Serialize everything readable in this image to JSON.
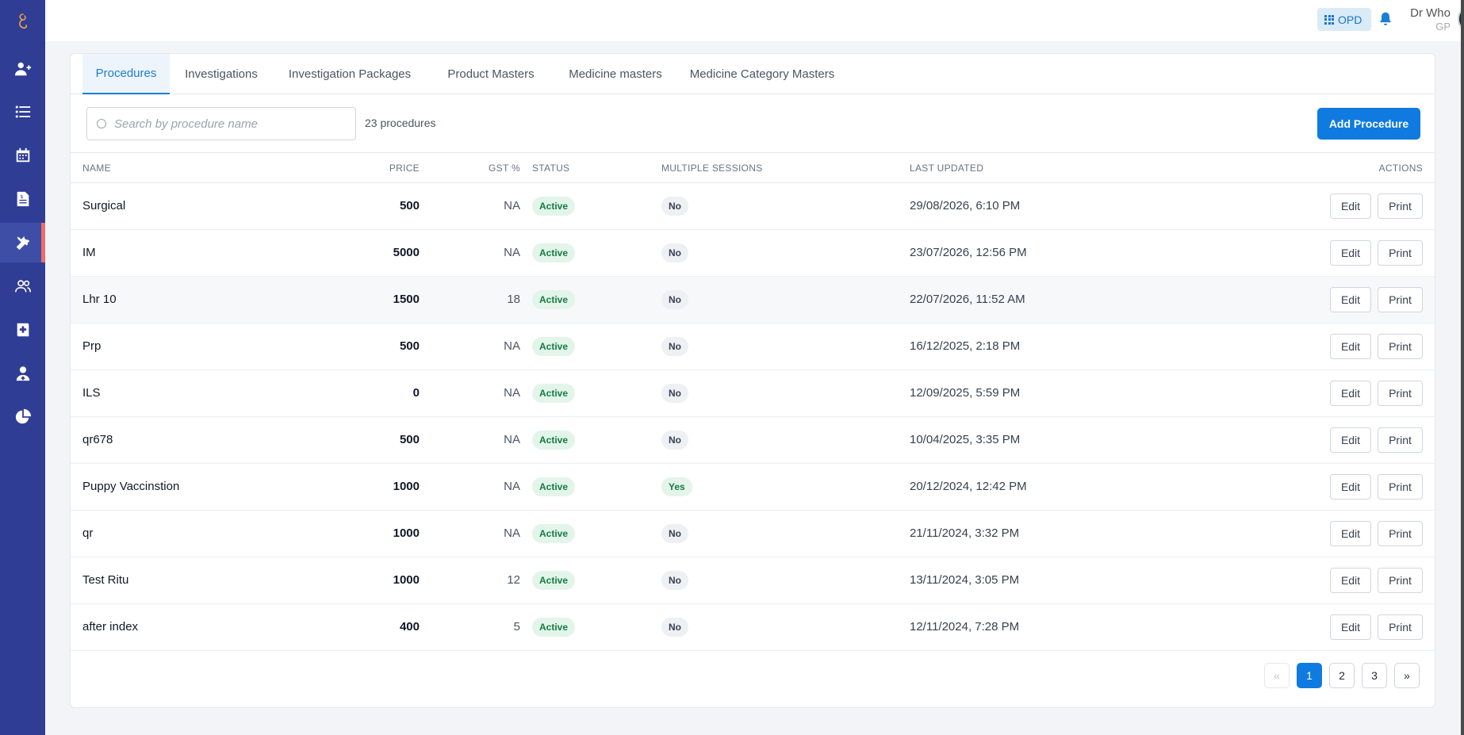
{
  "header": {
    "opd_label": "OPD",
    "user_name": "Dr Who",
    "user_role": "GP"
  },
  "sidebar": {
    "active_accent": "#f06b6b",
    "background": "#2f3d94",
    "items": [
      {
        "icon": "user-plus-icon"
      },
      {
        "icon": "list-icon"
      },
      {
        "icon": "calendar-icon"
      },
      {
        "icon": "invoice-icon"
      },
      {
        "icon": "tools-icon",
        "active": true
      },
      {
        "icon": "users-icon"
      },
      {
        "icon": "medical-book-icon"
      },
      {
        "icon": "doctor-icon"
      },
      {
        "icon": "pie-chart-icon"
      }
    ]
  },
  "tabs": [
    "Procedures",
    "Investigations",
    "Investigation Packages",
    "Product Masters",
    "Medicine masters",
    "Medicine Category Masters"
  ],
  "active_tab": "Procedures",
  "toolbar": {
    "search_placeholder": "Search by procedure name",
    "count_text": "23 procedures",
    "add_label": "Add Procedure"
  },
  "table": {
    "headers": {
      "name": "NAME",
      "price": "PRICE",
      "gst": "GST %",
      "status": "STATUS",
      "sessions": "MULTIPLE SESSIONS",
      "updated": "LAST UPDATED",
      "actions": "ACTIONS"
    },
    "rows": [
      {
        "name": "Surgical",
        "price": "500",
        "gst": "NA",
        "status": "Active",
        "sessions": "No",
        "updated": "29/08/2026, 6:10 PM",
        "edit": "Edit",
        "print": "Print"
      },
      {
        "name": "IM",
        "price": "5000",
        "gst": "NA",
        "status": "Active",
        "sessions": "No",
        "updated": "23/07/2026, 12:56 PM",
        "edit": "Edit",
        "print": "Print"
      },
      {
        "name": "Lhr 10",
        "price": "1500",
        "gst": "18",
        "status": "Active",
        "sessions": "No",
        "updated": "22/07/2026, 11:52 AM",
        "edit": "Edit",
        "print": "Print"
      },
      {
        "name": "Prp",
        "price": "500",
        "gst": "NA",
        "status": "Active",
        "sessions": "No",
        "updated": "16/12/2025, 2:18 PM",
        "edit": "Edit",
        "print": "Print"
      },
      {
        "name": "ILS",
        "price": "0",
        "gst": "NA",
        "status": "Active",
        "sessions": "No",
        "updated": "12/09/2025, 5:59 PM",
        "edit": "Edit",
        "print": "Print"
      },
      {
        "name": "qr678",
        "price": "500",
        "gst": "NA",
        "status": "Active",
        "sessions": "No",
        "updated": "10/04/2025, 3:35 PM",
        "edit": "Edit",
        "print": "Print"
      },
      {
        "name": "Puppy Vaccinstion",
        "price": "1000",
        "gst": "NA",
        "status": "Active",
        "sessions": "Yes",
        "updated": "20/12/2024, 12:42 PM",
        "edit": "Edit",
        "print": "Print"
      },
      {
        "name": "qr",
        "price": "1000",
        "gst": "NA",
        "status": "Active",
        "sessions": "No",
        "updated": "21/11/2024, 3:32 PM",
        "edit": "Edit",
        "print": "Print"
      },
      {
        "name": "Test Ritu",
        "price": "1000",
        "gst": "12",
        "status": "Active",
        "sessions": "No",
        "updated": "13/11/2024, 3:05 PM",
        "edit": "Edit",
        "print": "Print"
      },
      {
        "name": "after index",
        "price": "400",
        "gst": "5",
        "status": "Active",
        "sessions": "No",
        "updated": "12/11/2024, 7:28 PM",
        "edit": "Edit",
        "print": "Print"
      }
    ]
  },
  "pagination": {
    "prev": "«",
    "pages": [
      "1",
      "2",
      "3"
    ],
    "current": "1",
    "next": "»"
  },
  "colors": {
    "primary": "#0f7ae0",
    "active_status_bg": "#e3f5ea",
    "active_status_text": "#167a43"
  }
}
